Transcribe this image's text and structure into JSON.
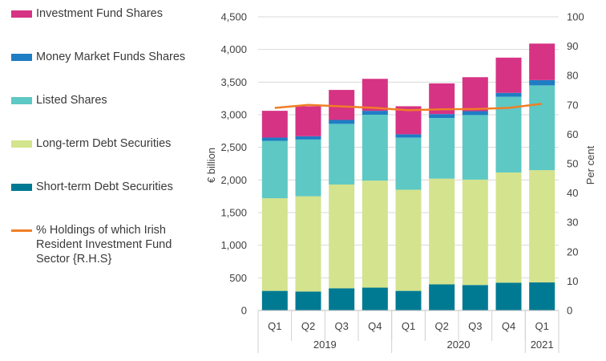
{
  "chart_data": {
    "type": "bar",
    "stacked": true,
    "title": "",
    "categories": [
      "Q1",
      "Q2",
      "Q3",
      "Q4",
      "Q1",
      "Q2",
      "Q3",
      "Q4",
      "Q1"
    ],
    "years": [
      {
        "label": "2019",
        "count": 4
      },
      {
        "label": "2020",
        "count": 4
      },
      {
        "label": "2021",
        "count": 1
      }
    ],
    "ylabel": "€ billion",
    "y2label": "Per cent",
    "ylim": [
      0,
      4500
    ],
    "y2lim": [
      0,
      100
    ],
    "yticks": [
      "0",
      "500",
      "1,000",
      "1,500",
      "2,000",
      "2,500",
      "3,000",
      "3,500",
      "4,000",
      "4,500"
    ],
    "y2ticks": [
      "0",
      "10",
      "20",
      "30",
      "40",
      "50",
      "60",
      "70",
      "80",
      "90",
      "100"
    ],
    "series": [
      {
        "name": "Short-term Debt Securities",
        "color": "#007a93",
        "values": [
          300,
          290,
          340,
          350,
          300,
          400,
          390,
          425,
          430
        ]
      },
      {
        "name": "Long-term Debt Securities",
        "color": "#d4e38d",
        "values": [
          1420,
          1460,
          1590,
          1640,
          1550,
          1620,
          1615,
          1690,
          1720
        ]
      },
      {
        "name": "Listed Shares",
        "color": "#5ec8c4",
        "values": [
          880,
          870,
          930,
          1010,
          800,
          930,
          990,
          1160,
          1300
        ]
      },
      {
        "name": "Money Market Funds Shares",
        "color": "#1f7dc4",
        "values": [
          50,
          50,
          60,
          60,
          50,
          60,
          60,
          60,
          80
        ]
      },
      {
        "name": "Investment Fund Shares",
        "color": "#d63384",
        "values": [
          410,
          460,
          460,
          490,
          430,
          470,
          520,
          540,
          560
        ]
      }
    ],
    "line": {
      "name": "% Holdings of which Irish Resident Investment Fund Sector {R.H.S}",
      "color": "#f07e26",
      "axis": "right",
      "values": [
        69,
        70,
        69.5,
        69,
        68.2,
        68.5,
        68.6,
        69,
        70.4
      ]
    },
    "legend_order": [
      "Investment Fund Shares",
      "Money Market Funds Shares",
      "Listed Shares",
      "Long-term Debt Securities",
      "Short-term Debt Securities",
      "% Holdings of which Irish Resident Investment Fund Sector {R.H.S}"
    ],
    "legend_position": "left"
  }
}
